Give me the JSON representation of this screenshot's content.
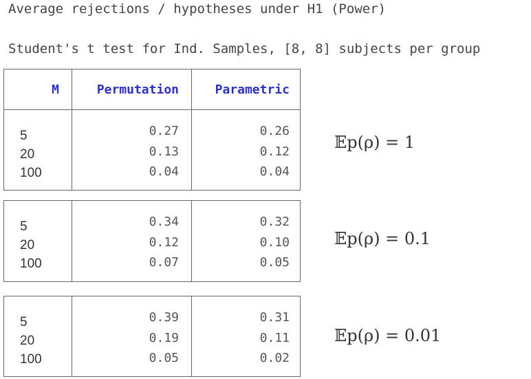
{
  "heading": "Average rejections / hypotheses under H1 (Power)",
  "subheading": "Student's t test for Ind. Samples, [8, 8] subjects per group",
  "table": {
    "columns": [
      "M",
      "Permutation",
      "Parametric"
    ],
    "groups": [
      {
        "label": "𝔼p(ρ) = 1",
        "M": [
          "5",
          "20",
          "100"
        ],
        "permutation": [
          "0.27",
          "0.13",
          "0.04"
        ],
        "parametric": [
          "0.26",
          "0.12",
          "0.04"
        ]
      },
      {
        "label": "𝔼p(ρ) = 0.1",
        "M": [
          "5",
          "20",
          "100"
        ],
        "permutation": [
          "0.34",
          "0.12",
          "0.07"
        ],
        "parametric": [
          "0.32",
          "0.10",
          "0.05"
        ]
      },
      {
        "label": "𝔼p(ρ) = 0.01",
        "M": [
          "5",
          "20",
          "100"
        ],
        "permutation": [
          "0.39",
          "0.19",
          "0.05"
        ],
        "parametric": [
          "0.31",
          "0.11",
          "0.02"
        ]
      }
    ]
  },
  "colors": {
    "header_text": "#2e2ecf",
    "border": "#666666"
  }
}
